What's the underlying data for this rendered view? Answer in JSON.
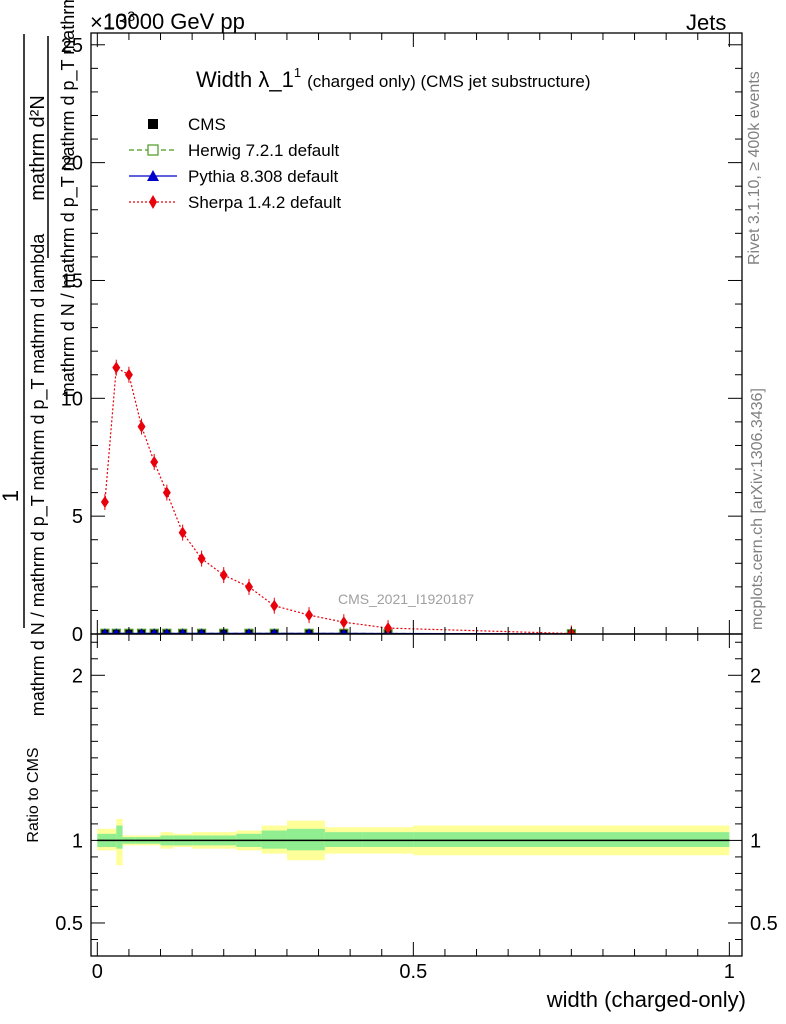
{
  "header": {
    "beam": "13000 GeV pp",
    "exponent_label": "×10",
    "exponent_power": "3",
    "process": "Jets"
  },
  "side_labels": {
    "rivet": "Rivet 3.1.10, ≥ 400k events",
    "mcplots": "mcplots.cern.ch [arXiv:1306.3436]"
  },
  "watermark": "CMS_2021_I1920187",
  "chart_data": {
    "type": "line",
    "title": {
      "main": "Width λ_1",
      "sup": "1",
      "rest": "(charged only) (CMS jet substructure)"
    },
    "ylabel": {
      "numerator": "mathrm d²N",
      "denominator": "mathrm d N / mathrm d p_T mathrm d p_T mathrm d lambda",
      "prefix_numerator": "1",
      "prefix_denominator": "mathrm d N / mathrm d p_T mathrm d p_T mathrm d lambda"
    },
    "xlabel": "width (charged-only)",
    "ratio_ylabel": "Ratio to CMS",
    "xlim": [
      -0.01,
      1.02
    ],
    "ylim": [
      0,
      25.5
    ],
    "ratio_ylim": [
      0.3,
      2.25
    ],
    "main_yticks": [
      {
        "value": 0,
        "label": "0"
      },
      {
        "value": 5,
        "label": "5"
      },
      {
        "value": 10,
        "label": "10"
      },
      {
        "value": 15,
        "label": "15"
      },
      {
        "value": 20,
        "label": "20"
      },
      {
        "value": 25,
        "label": "25"
      }
    ],
    "ratio_yticks": [
      {
        "value": 0.5,
        "label": "0.5"
      },
      {
        "value": 1,
        "label": "1"
      },
      {
        "value": 2,
        "label": "2"
      }
    ],
    "xticks": [
      {
        "value": 0,
        "label": "0"
      },
      {
        "value": 0.5,
        "label": "0.5"
      },
      {
        "value": 1,
        "label": "1"
      }
    ],
    "legend": [
      {
        "name": "CMS",
        "color": "#000000",
        "marker": "square"
      },
      {
        "name": "Herwig 7.2.1 default",
        "color": "#4a9a1f",
        "marker": "open-square"
      },
      {
        "name": "Pythia 8.308 default",
        "color": "#0000cc",
        "marker": "triangle"
      },
      {
        "name": "Sherpa 1.4.2 default",
        "color": "#e8000b",
        "marker": "diamond"
      }
    ],
    "bins": [
      0.0,
      0.03,
      0.04,
      0.06,
      0.08,
      0.1,
      0.12,
      0.15,
      0.18,
      0.22,
      0.26,
      0.3,
      0.36,
      0.42,
      0.5,
      1.0
    ],
    "series": [
      {
        "name": "CMS",
        "x": [
          0.012,
          0.03,
          0.05,
          0.07,
          0.09,
          0.11,
          0.135,
          0.165,
          0.2,
          0.24,
          0.28,
          0.335,
          0.39,
          0.46,
          0.75
        ],
        "y": [
          0.03,
          0.03,
          0.03,
          0.03,
          0.03,
          0.03,
          0.03,
          0.03,
          0.03,
          0.03,
          0.03,
          0.03,
          0.03,
          0.02,
          0.01
        ]
      },
      {
        "name": "Herwig 7.2.1 default",
        "x": [
          0.012,
          0.03,
          0.05,
          0.07,
          0.09,
          0.11,
          0.135,
          0.165,
          0.2,
          0.24,
          0.28,
          0.335,
          0.39,
          0.46,
          0.75
        ],
        "y": [
          0.03,
          0.03,
          0.03,
          0.03,
          0.03,
          0.03,
          0.03,
          0.03,
          0.03,
          0.03,
          0.03,
          0.03,
          0.03,
          0.02,
          0.01
        ]
      },
      {
        "name": "Pythia 8.308 default",
        "x": [
          0.012,
          0.03,
          0.05,
          0.07,
          0.09,
          0.11,
          0.135,
          0.165,
          0.2,
          0.24,
          0.28,
          0.335,
          0.39,
          0.46,
          0.75
        ],
        "y": [
          0.03,
          0.03,
          0.03,
          0.03,
          0.03,
          0.03,
          0.03,
          0.03,
          0.03,
          0.03,
          0.03,
          0.03,
          0.03,
          0.02,
          0.01
        ]
      },
      {
        "name": "Sherpa 1.4.2 default",
        "x": [
          0.012,
          0.03,
          0.05,
          0.07,
          0.09,
          0.11,
          0.135,
          0.165,
          0.2,
          0.24,
          0.28,
          0.335,
          0.39,
          0.46,
          0.75
        ],
        "y": [
          5.6,
          11.3,
          11.0,
          8.8,
          7.3,
          6.0,
          4.3,
          3.2,
          2.5,
          2.0,
          1.2,
          0.8,
          0.5,
          0.25,
          0.02
        ]
      }
    ],
    "ratio_bands": {
      "inner": [
        [
          0.96,
          1.04
        ],
        [
          0.95,
          1.09
        ],
        [
          0.98,
          1.02
        ],
        [
          0.98,
          1.02
        ],
        [
          0.98,
          1.02
        ],
        [
          0.97,
          1.03
        ],
        [
          0.97,
          1.03
        ],
        [
          0.97,
          1.03
        ],
        [
          0.97,
          1.03
        ],
        [
          0.96,
          1.04
        ],
        [
          0.95,
          1.06
        ],
        [
          0.94,
          1.07
        ],
        [
          0.96,
          1.05
        ],
        [
          0.96,
          1.05
        ],
        [
          0.96,
          1.05
        ]
      ],
      "outer": [
        [
          0.94,
          1.07
        ],
        [
          0.85,
          1.13
        ],
        [
          0.97,
          1.03
        ],
        [
          0.97,
          1.03
        ],
        [
          0.97,
          1.03
        ],
        [
          0.95,
          1.05
        ],
        [
          0.96,
          1.04
        ],
        [
          0.95,
          1.05
        ],
        [
          0.95,
          1.05
        ],
        [
          0.94,
          1.06
        ],
        [
          0.92,
          1.09
        ],
        [
          0.88,
          1.12
        ],
        [
          0.92,
          1.08
        ],
        [
          0.92,
          1.08
        ],
        [
          0.91,
          1.09
        ]
      ]
    },
    "colors": {
      "inner_band": "#90ee90",
      "outer_band": "#ffff99"
    }
  }
}
